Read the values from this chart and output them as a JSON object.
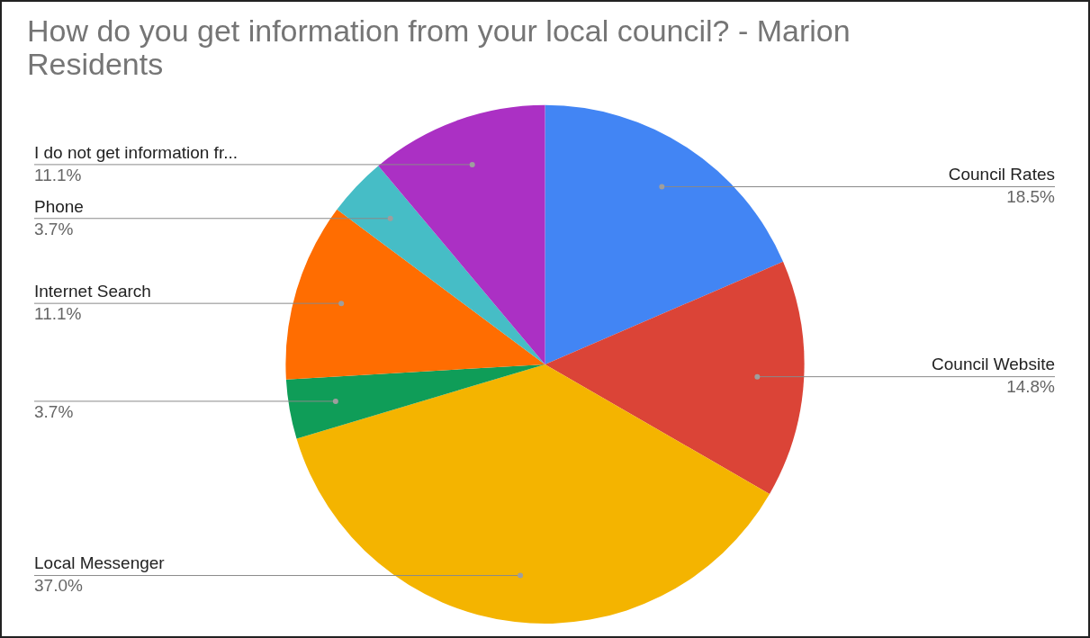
{
  "chart_data": {
    "type": "pie",
    "title": "How do you get information from your local council? - Marion Residents",
    "categories": [
      "Council Rates",
      "Council Website",
      "Local Messenger",
      null,
      "Internet Search",
      "Phone",
      "I do not get information fr..."
    ],
    "values": [
      18.5,
      14.8,
      37.0,
      3.7,
      11.1,
      3.7,
      11.1
    ],
    "colors": [
      "#4285f4",
      "#db4437",
      "#f4b400",
      "#0f9d58",
      "#ff6d01",
      "#46bdc6",
      "#ab30c4"
    ],
    "value_labels": [
      "18.5%",
      "14.8%",
      "37.0%",
      "3.7%",
      "11.1%",
      "3.7%",
      "11.1%"
    ],
    "legend": false
  }
}
